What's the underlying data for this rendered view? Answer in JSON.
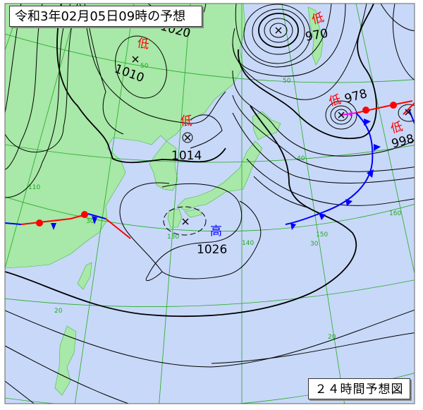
{
  "header": {
    "title": "令和3年02月05日09時の予想"
  },
  "footer": {
    "label": "２４時間予想図"
  },
  "colors": {
    "sea": "#c8d8f8",
    "land": "#a8e8a8",
    "grid": "#22aa22",
    "isobar": "#000000",
    "low": "#ff0000",
    "high": "#0000ff",
    "warm_front": "#ff0000",
    "cold_front": "#0000ff",
    "occluded_front": "#ff00ff"
  },
  "pressure_systems": [
    {
      "type": "low",
      "symbol": "低",
      "pressure": "970"
    },
    {
      "type": "low",
      "symbol": "低",
      "pressure": "978"
    },
    {
      "type": "low",
      "symbol": "低",
      "pressure": "998"
    },
    {
      "type": "low",
      "symbol": "低",
      "pressure": "1010"
    },
    {
      "type": "low",
      "symbol": "低",
      "pressure": "1014"
    },
    {
      "type": "high",
      "symbol": "高",
      "pressure": "1026"
    }
  ],
  "isobar_labels": [
    "1020"
  ],
  "grid_labels": {
    "lat": [
      "50",
      "40",
      "30",
      "20"
    ],
    "lon": [
      "110",
      "130",
      "140",
      "150",
      "160"
    ],
    "minor": [
      "50",
      "30",
      "30"
    ]
  }
}
